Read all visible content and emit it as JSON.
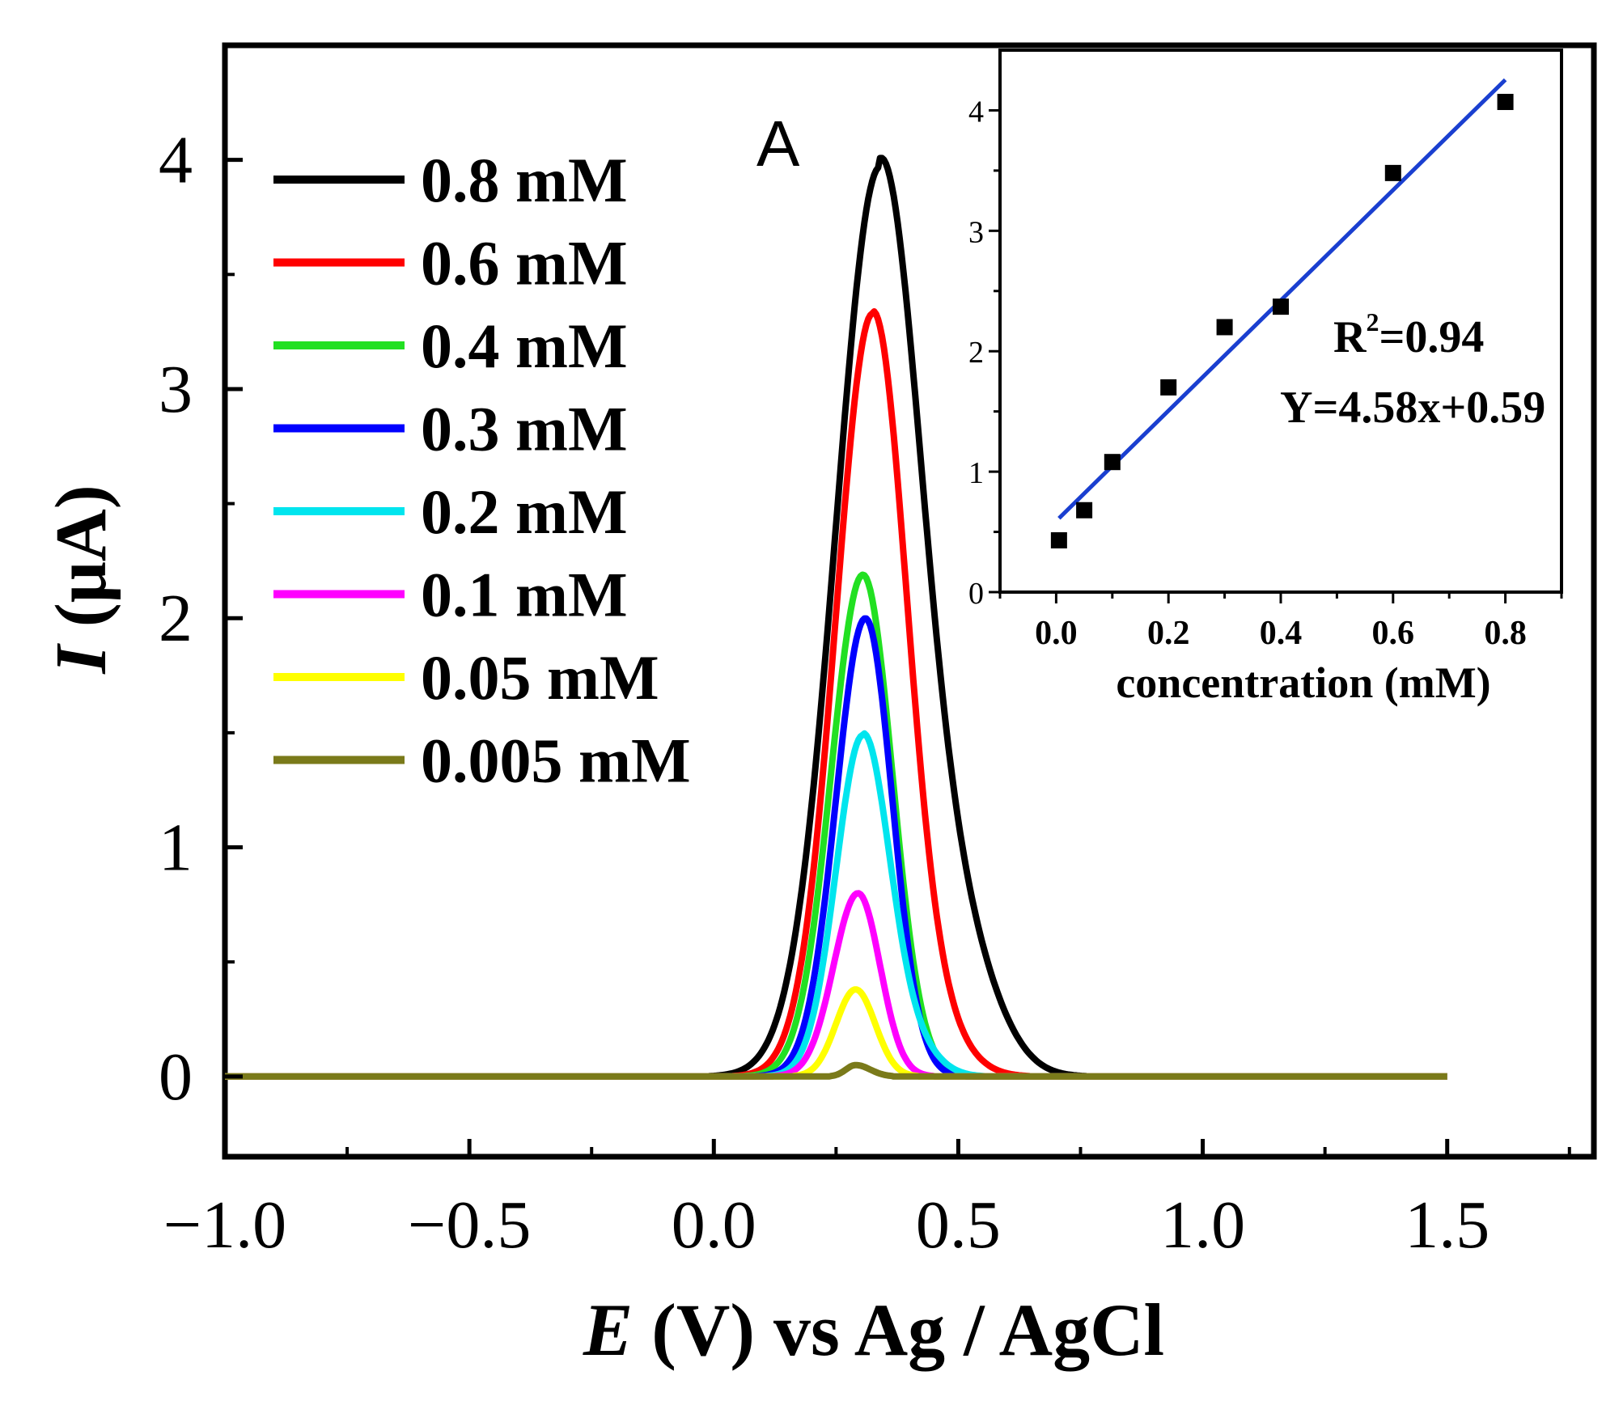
{
  "chart_data": [
    {
      "type": "line",
      "title": "",
      "panel_label": "A",
      "xlabel": {
        "italic": "E",
        "rest": " (V) vs Ag / AgCl"
      },
      "ylabel": {
        "italic": "I",
        "rest": " (μA)"
      },
      "xlim": [
        -1.0,
        1.8
      ],
      "ylim": [
        -0.35,
        4.5
      ],
      "xticks": [
        -1.0,
        -0.5,
        0.0,
        0.5,
        1.0,
        1.5
      ],
      "xtick_labels": [
        "−1.0",
        "−0.5",
        "0.0",
        "0.5",
        "1.0",
        "1.5"
      ],
      "yticks": [
        0,
        1,
        2,
        3,
        4
      ],
      "ytick_labels": [
        "0",
        "1",
        "2",
        "3",
        "4"
      ],
      "x_range": [
        -1.0,
        1.5
      ],
      "legend_position": "top-left",
      "series": [
        {
          "name": "0.8 mM",
          "label": "0.8 mM",
          "color": "#000000",
          "peak_x": 0.34,
          "peak_y": 3.97,
          "left_w": 0.09,
          "right_w": 0.085,
          "shoulder": 0.45
        },
        {
          "name": "0.6 mM",
          "label": "0.6 mM",
          "color": "#ff0000",
          "peak_x": 0.325,
          "peak_y": 3.33,
          "left_w": 0.075,
          "right_w": 0.07,
          "shoulder": 0.15
        },
        {
          "name": "0.4 mM",
          "label": "0.4 mM",
          "color": "#22e022",
          "peak_x": 0.305,
          "peak_y": 2.19,
          "left_w": 0.065,
          "right_w": 0.06,
          "shoulder": 0
        },
        {
          "name": "0.3 mM",
          "label": "0.3 mM",
          "color": "#0000ff",
          "peak_x": 0.31,
          "peak_y": 2.0,
          "left_w": 0.06,
          "right_w": 0.055,
          "shoulder": 0
        },
        {
          "name": "0.2 mM",
          "label": "0.2 mM",
          "color": "#00e5ee",
          "peak_x": 0.305,
          "peak_y": 1.49,
          "left_w": 0.055,
          "right_w": 0.055,
          "shoulder": 0.25
        },
        {
          "name": "0.1 mM",
          "label": "0.1 mM",
          "color": "#ff00ff",
          "peak_x": 0.295,
          "peak_y": 0.8,
          "left_w": 0.05,
          "right_w": 0.045,
          "shoulder": 0
        },
        {
          "name": "0.05 mM",
          "label": "0.05 mM",
          "color": "#ffff00",
          "peak_x": 0.29,
          "peak_y": 0.38,
          "left_w": 0.04,
          "right_w": 0.04,
          "shoulder": 0
        },
        {
          "name": "0.005 mM",
          "label": "0.005 mM",
          "color": "#7a7a1a",
          "peak_x": 0.29,
          "peak_y": 0.05,
          "left_w": 0.02,
          "right_w": 0.03,
          "shoulder": 0
        }
      ]
    },
    {
      "type": "scatter",
      "title": "",
      "inset": true,
      "xlabel": "concentration (mM)",
      "ylabel": "",
      "xlim": [
        -0.1,
        0.9
      ],
      "ylim": [
        0,
        4.5
      ],
      "xticks": [
        0.0,
        0.2,
        0.4,
        0.6,
        0.8
      ],
      "xtick_labels": [
        "0.0",
        "0.2",
        "0.4",
        "0.6",
        "0.8"
      ],
      "yticks": [
        0,
        1,
        2,
        3,
        4
      ],
      "ytick_labels": [
        "0",
        "1",
        "2",
        "3",
        "4"
      ],
      "points": [
        {
          "x": 0.005,
          "y": 0.43
        },
        {
          "x": 0.05,
          "y": 0.68
        },
        {
          "x": 0.1,
          "y": 1.08
        },
        {
          "x": 0.2,
          "y": 1.7
        },
        {
          "x": 0.3,
          "y": 2.2
        },
        {
          "x": 0.4,
          "y": 2.37
        },
        {
          "x": 0.6,
          "y": 3.48
        },
        {
          "x": 0.8,
          "y": 4.07
        }
      ],
      "fit": {
        "slope": 4.58,
        "intercept": 0.59,
        "x_range": [
          0.005,
          0.8
        ],
        "color": "#1a3fd0"
      },
      "annotations": {
        "r2_base": "R",
        "r2_sup": "2",
        "r2_value": "=0.94",
        "equation": "Y=4.58x+0.59"
      }
    }
  ]
}
